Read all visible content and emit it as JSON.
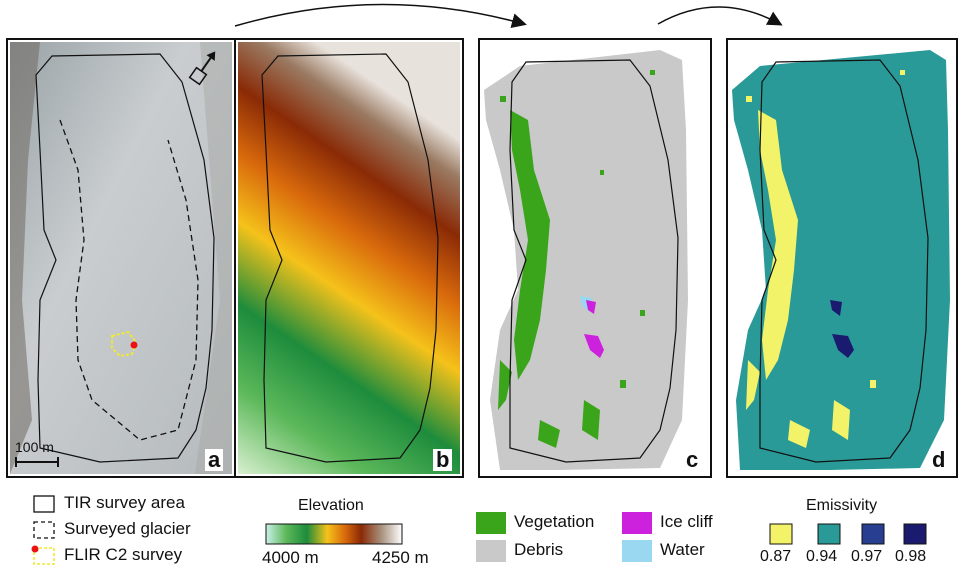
{
  "panels": {
    "a": {
      "label": "a",
      "scalebar": "100 m"
    },
    "b": {
      "label": "b"
    },
    "c": {
      "label": "c"
    },
    "d": {
      "label": "d"
    }
  },
  "legend_outlines": {
    "tir": "TIR survey area",
    "glacier": "Surveyed glacier",
    "flir": "FLIR C2 survey"
  },
  "legend_elevation": {
    "title": "Elevation",
    "min_label": "4000 m",
    "max_label": "4250 m"
  },
  "legend_classes": {
    "vegetation": "Vegetation",
    "debris": "Debris",
    "ice_cliff": "Ice cliff",
    "water": "Water"
  },
  "legend_emissivity": {
    "title": "Emissivity",
    "values": [
      "0.87",
      "0.94",
      "0.97",
      "0.98"
    ]
  },
  "colors": {
    "vegetation": "#3aa51a",
    "debris": "#c9c9c9",
    "ice_cliff": "#cc22dd",
    "water": "#9ad7f0",
    "em_087": "#f3f36a",
    "em_094": "#2a9a98",
    "em_097": "#283e90",
    "em_098": "#1a1a6e"
  }
}
